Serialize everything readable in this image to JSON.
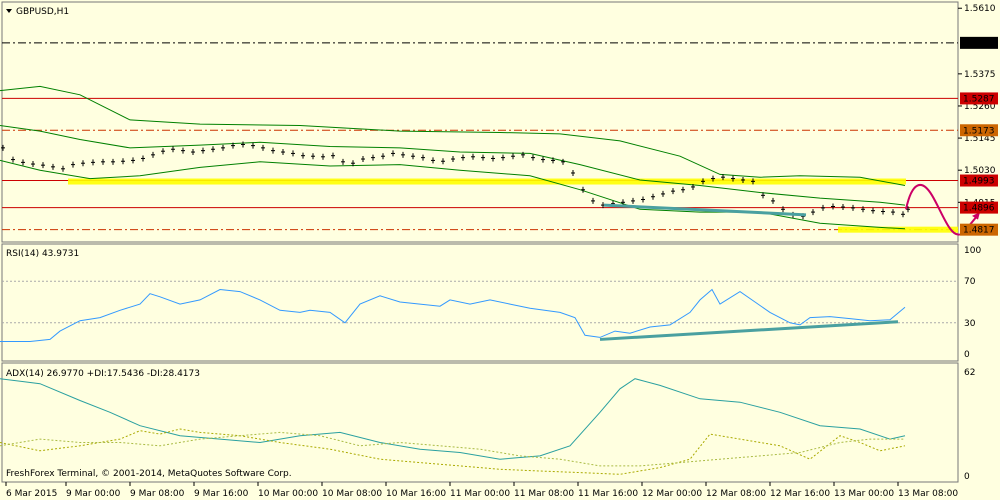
{
  "chart_data": [
    {
      "type": "line",
      "title": "GBPUSD,H1",
      "pane": "price",
      "ylim": [
        1.478,
        1.5618
      ],
      "y_ticks": [
        1.561,
        1.5375,
        1.526,
        1.5145,
        1.503,
        1.4915
      ],
      "price_labels": {
        "line_1": "1.5486",
        "line_2": "1.5287",
        "line_3": "1.5173",
        "line_4": "1.4993",
        "line_5": "1.4896",
        "line_6": "1.4817"
      },
      "x_tick_labels": [
        "6 Mar 2015",
        "9 Mar 00:00",
        "9 Mar 08:00",
        "9 Mar 16:00",
        "10 Mar 00:00",
        "10 Mar 08:00",
        "10 Mar 16:00",
        "11 Mar 00:00",
        "11 Mar 08:00",
        "11 Mar 16:00",
        "12 Mar 00:00",
        "12 Mar 08:00",
        "12 Mar 16:00",
        "13 Mar 00:00",
        "13 Mar 08:00"
      ],
      "price_series": [
        [
          0,
          1.511
        ],
        [
          10,
          1.5068
        ],
        [
          20,
          1.5058
        ],
        [
          30,
          1.5052
        ],
        [
          40,
          1.5048
        ],
        [
          50,
          1.5042
        ],
        [
          60,
          1.5035
        ],
        [
          70,
          1.505
        ],
        [
          80,
          1.5055
        ],
        [
          90,
          1.5058
        ],
        [
          100,
          1.506
        ],
        [
          110,
          1.506
        ],
        [
          120,
          1.5062
        ],
        [
          130,
          1.5065
        ],
        [
          140,
          1.5072
        ],
        [
          150,
          1.5085
        ],
        [
          160,
          1.5098
        ],
        [
          170,
          1.5105
        ],
        [
          180,
          1.51
        ],
        [
          190,
          1.5095
        ],
        [
          200,
          1.51
        ],
        [
          210,
          1.5105
        ],
        [
          220,
          1.511
        ],
        [
          230,
          1.5118
        ],
        [
          240,
          1.5122
        ],
        [
          250,
          1.5118
        ],
        [
          260,
          1.511
        ],
        [
          270,
          1.51
        ],
        [
          280,
          1.5095
        ],
        [
          290,
          1.509
        ],
        [
          300,
          1.5082
        ],
        [
          310,
          1.508
        ],
        [
          320,
          1.5078
        ],
        [
          330,
          1.5082
        ],
        [
          340,
          1.506
        ],
        [
          350,
          1.5055
        ],
        [
          360,
          1.507
        ],
        [
          370,
          1.5075
        ],
        [
          380,
          1.508
        ],
        [
          390,
          1.509
        ],
        [
          400,
          1.5085
        ],
        [
          410,
          1.508
        ],
        [
          420,
          1.5075
        ],
        [
          430,
          1.5065
        ],
        [
          440,
          1.5062
        ],
        [
          450,
          1.507
        ],
        [
          460,
          1.5075
        ],
        [
          470,
          1.5078
        ],
        [
          480,
          1.5075
        ],
        [
          490,
          1.5072
        ],
        [
          500,
          1.5075
        ],
        [
          510,
          1.508
        ],
        [
          520,
          1.5085
        ],
        [
          530,
          1.5075
        ],
        [
          540,
          1.5068
        ],
        [
          550,
          1.5065
        ],
        [
          560,
          1.506
        ],
        [
          570,
          1.502
        ],
        [
          580,
          1.496
        ],
        [
          590,
          1.492
        ],
        [
          600,
          1.4905
        ],
        [
          610,
          1.491
        ],
        [
          620,
          1.4915
        ],
        [
          630,
          1.492
        ],
        [
          640,
          1.4925
        ],
        [
          650,
          1.4935
        ],
        [
          660,
          1.4945
        ],
        [
          670,
          1.4955
        ],
        [
          680,
          1.496
        ],
        [
          690,
          1.497
        ],
        [
          700,
          1.499
        ],
        [
          710,
          1.5
        ],
        [
          720,
          1.5005
        ],
        [
          730,
          1.5
        ],
        [
          740,
          1.4995
        ],
        [
          750,
          1.499
        ],
        [
          760,
          1.494
        ],
        [
          770,
          1.492
        ],
        [
          780,
          1.489
        ],
        [
          790,
          1.487
        ],
        [
          800,
          1.4865
        ],
        [
          810,
          1.488
        ],
        [
          820,
          1.4895
        ],
        [
          830,
          1.49
        ],
        [
          840,
          1.4898
        ],
        [
          850,
          1.4895
        ],
        [
          860,
          1.489
        ],
        [
          870,
          1.4885
        ],
        [
          880,
          1.4882
        ],
        [
          890,
          1.488
        ],
        [
          900,
          1.4872
        ],
        [
          905,
          1.489
        ]
      ],
      "band_upper": [
        [
          0,
          1.5315
        ],
        [
          40,
          1.533
        ],
        [
          80,
          1.53
        ],
        [
          130,
          1.521
        ],
        [
          200,
          1.5195
        ],
        [
          300,
          1.519
        ],
        [
          400,
          1.517
        ],
        [
          500,
          1.5165
        ],
        [
          560,
          1.516
        ],
        [
          620,
          1.5135
        ],
        [
          680,
          1.508
        ],
        [
          720,
          1.5015
        ],
        [
          760,
          1.5005
        ],
        [
          800,
          1.501
        ],
        [
          860,
          1.5005
        ],
        [
          905,
          1.4975
        ]
      ],
      "band_middle": [
        [
          0,
          1.519
        ],
        [
          40,
          1.517
        ],
        [
          80,
          1.514
        ],
        [
          130,
          1.511
        ],
        [
          200,
          1.512
        ],
        [
          260,
          1.513
        ],
        [
          330,
          1.5115
        ],
        [
          400,
          1.511
        ],
        [
          460,
          1.5095
        ],
        [
          530,
          1.509
        ],
        [
          580,
          1.505
        ],
        [
          640,
          1.4995
        ],
        [
          700,
          1.4975
        ],
        [
          760,
          1.495
        ],
        [
          820,
          1.493
        ],
        [
          880,
          1.4915
        ],
        [
          905,
          1.4905
        ]
      ],
      "band_lower": [
        [
          0,
          1.5065
        ],
        [
          40,
          1.503
        ],
        [
          90,
          1.5
        ],
        [
          140,
          1.501
        ],
        [
          200,
          1.504
        ],
        [
          260,
          1.506
        ],
        [
          330,
          1.5045
        ],
        [
          400,
          1.505
        ],
        [
          460,
          1.503
        ],
        [
          530,
          1.501
        ],
        [
          580,
          1.496
        ],
        [
          640,
          1.489
        ],
        [
          700,
          1.488
        ],
        [
          760,
          1.488
        ],
        [
          820,
          1.484
        ],
        [
          880,
          1.4825
        ],
        [
          905,
          1.482
        ]
      ]
    },
    {
      "type": "line",
      "title": "RSI(14) 43.9731",
      "pane": "rsi",
      "ylim": [
        0,
        100
      ],
      "y_ticks": [
        100,
        70,
        30,
        0
      ],
      "series": [
        [
          0,
          12
        ],
        [
          30,
          12
        ],
        [
          50,
          14
        ],
        [
          60,
          22
        ],
        [
          80,
          32
        ],
        [
          100,
          35
        ],
        [
          120,
          42
        ],
        [
          140,
          48
        ],
        [
          150,
          58
        ],
        [
          160,
          55
        ],
        [
          180,
          48
        ],
        [
          200,
          52
        ],
        [
          220,
          62
        ],
        [
          240,
          60
        ],
        [
          260,
          52
        ],
        [
          280,
          42
        ],
        [
          300,
          40
        ],
        [
          310,
          42
        ],
        [
          330,
          40
        ],
        [
          345,
          30
        ],
        [
          360,
          48
        ],
        [
          380,
          56
        ],
        [
          400,
          50
        ],
        [
          420,
          48
        ],
        [
          440,
          46
        ],
        [
          450,
          52
        ],
        [
          470,
          48
        ],
        [
          490,
          52
        ],
        [
          510,
          48
        ],
        [
          530,
          44
        ],
        [
          560,
          40
        ],
        [
          575,
          35
        ],
        [
          585,
          18
        ],
        [
          600,
          16
        ],
        [
          615,
          22
        ],
        [
          630,
          20
        ],
        [
          650,
          26
        ],
        [
          670,
          28
        ],
        [
          690,
          40
        ],
        [
          700,
          52
        ],
        [
          712,
          62
        ],
        [
          720,
          48
        ],
        [
          740,
          60
        ],
        [
          755,
          50
        ],
        [
          770,
          40
        ],
        [
          790,
          30
        ],
        [
          800,
          28
        ],
        [
          810,
          35
        ],
        [
          830,
          36
        ],
        [
          850,
          34
        ],
        [
          870,
          32
        ],
        [
          890,
          33
        ],
        [
          905,
          45
        ]
      ]
    },
    {
      "type": "line",
      "title": "ADX(14) 26.9770 +DI:17.5436 -DI:28.4173",
      "pane": "adx",
      "ylim": [
        0,
        62
      ],
      "y_ticks": [
        62,
        0
      ],
      "series": [
        {
          "name": "ADX",
          "values": [
            [
              0,
              58
            ],
            [
              40,
              55
            ],
            [
              80,
              45
            ],
            [
              110,
              38
            ],
            [
              140,
              30
            ],
            [
              180,
              24
            ],
            [
              220,
              22
            ],
            [
              260,
              20
            ],
            [
              300,
              24
            ],
            [
              340,
              26
            ],
            [
              380,
              20
            ],
            [
              420,
              16
            ],
            [
              460,
              14
            ],
            [
              500,
              10
            ],
            [
              540,
              12
            ],
            [
              570,
              18
            ],
            [
              600,
              38
            ],
            [
              620,
              52
            ],
            [
              635,
              58
            ],
            [
              660,
              54
            ],
            [
              700,
              46
            ],
            [
              740,
              44
            ],
            [
              780,
              38
            ],
            [
              820,
              30
            ],
            [
              860,
              28
            ],
            [
              890,
              22
            ],
            [
              905,
              24
            ]
          ]
        },
        {
          "name": "+DI",
          "values": [
            [
              0,
              20
            ],
            [
              40,
              15
            ],
            [
              80,
              18
            ],
            [
              120,
              22
            ],
            [
              140,
              27
            ],
            [
              160,
              25
            ],
            [
              180,
              28
            ],
            [
              200,
              26
            ],
            [
              240,
              24
            ],
            [
              280,
              20
            ],
            [
              330,
              16
            ],
            [
              380,
              10
            ],
            [
              420,
              8
            ],
            [
              460,
              6
            ],
            [
              500,
              4
            ],
            [
              540,
              3
            ],
            [
              580,
              2
            ],
            [
              620,
              1
            ],
            [
              660,
              5
            ],
            [
              690,
              10
            ],
            [
              710,
              25
            ],
            [
              740,
              22
            ],
            [
              780,
              18
            ],
            [
              810,
              10
            ],
            [
              840,
              24
            ],
            [
              860,
              20
            ],
            [
              880,
              15
            ],
            [
              905,
              18
            ]
          ]
        },
        {
          "name": "-DI",
          "values": [
            [
              0,
              18
            ],
            [
              40,
              22
            ],
            [
              80,
              20
            ],
            [
              120,
              20
            ],
            [
              160,
              18
            ],
            [
              200,
              22
            ],
            [
              240,
              24
            ],
            [
              280,
              26
            ],
            [
              320,
              24
            ],
            [
              360,
              18
            ],
            [
              400,
              20
            ],
            [
              440,
              18
            ],
            [
              480,
              16
            ],
            [
              520,
              12
            ],
            [
              560,
              10
            ],
            [
              600,
              6
            ],
            [
              640,
              6
            ],
            [
              680,
              8
            ],
            [
              720,
              10
            ],
            [
              760,
              12
            ],
            [
              800,
              14
            ],
            [
              840,
              20
            ],
            [
              870,
              22
            ],
            [
              905,
              22
            ]
          ]
        }
      ]
    }
  ],
  "colors": {
    "background": "#ffffe0",
    "price_bars": "#000000",
    "band": "#008000",
    "resistance_red": "#cc0000",
    "resistance_dash": "#cc3300",
    "dashdot_black": "#000000",
    "highlight_yellow": "#ffff00",
    "trend_teal": "#4aa0a0",
    "forecast_magenta": "#cc0066",
    "rsi_line": "#3399ff",
    "adx_line": "#2aa0a0",
    "plus_di": "#aaaa00",
    "minus_di": "#aabb44",
    "label_orange": "#cc6600",
    "label_red": "#cc0000"
  },
  "footer": "FreshForex Terminal, © 2001-2014, MetaQuotes Software Corp."
}
